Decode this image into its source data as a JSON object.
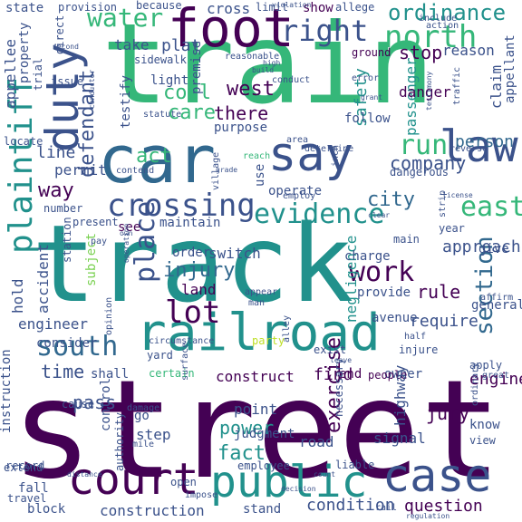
{
  "palette": {
    "purple": "#440154",
    "indigo": "#3b528b",
    "blue": "#31688e",
    "teal": "#21918c",
    "green": "#35b779",
    "lime": "#7ad151",
    "yellow": "#bddf26"
  },
  "words": [
    {
      "text": "street",
      "color": "purple"
    },
    {
      "text": "track",
      "color": "teal"
    },
    {
      "text": "train",
      "color": "green"
    },
    {
      "text": "car",
      "color": "blue"
    },
    {
      "text": "railroad",
      "color": "teal"
    },
    {
      "text": "foot",
      "color": "purple"
    },
    {
      "text": "court",
      "color": "purple"
    },
    {
      "text": "public",
      "color": "teal"
    },
    {
      "text": "case",
      "color": "indigo"
    },
    {
      "text": "say",
      "color": "indigo"
    },
    {
      "text": "duty",
      "color": "indigo"
    },
    {
      "text": "law",
      "color": "indigo"
    },
    {
      "text": "plaintiff",
      "color": "teal"
    },
    {
      "text": "crossing",
      "color": "indigo"
    },
    {
      "text": "evidence",
      "color": "teal"
    },
    {
      "text": "defendant",
      "color": "indigo"
    },
    {
      "text": "right",
      "color": "indigo"
    },
    {
      "text": "north",
      "color": "green"
    },
    {
      "text": "south",
      "color": "blue"
    },
    {
      "text": "place",
      "color": "indigo"
    },
    {
      "text": "lot",
      "color": "purple"
    },
    {
      "text": "work",
      "color": "purple"
    },
    {
      "text": "water",
      "color": "green"
    },
    {
      "text": "run",
      "color": "green"
    },
    {
      "text": "east",
      "color": "green"
    },
    {
      "text": "section",
      "color": "blue"
    },
    {
      "text": "ordinance",
      "color": "teal"
    },
    {
      "text": "injury",
      "color": "blue"
    },
    {
      "text": "person",
      "color": "blue"
    },
    {
      "text": "company",
      "color": "indigo"
    },
    {
      "text": "city",
      "color": "blue"
    },
    {
      "text": "way",
      "color": "purple"
    },
    {
      "text": "act",
      "color": "green"
    },
    {
      "text": "coal",
      "color": "green"
    },
    {
      "text": "care",
      "color": "green"
    },
    {
      "text": "west",
      "color": "purple"
    },
    {
      "text": "there",
      "color": "purple"
    },
    {
      "text": "stop",
      "color": "purple"
    },
    {
      "text": "time",
      "color": "indigo"
    },
    {
      "text": "fact",
      "color": "teal"
    },
    {
      "text": "power",
      "color": "teal"
    },
    {
      "text": "pass",
      "color": "indigo"
    },
    {
      "text": "jury",
      "color": "purple"
    },
    {
      "text": "rule",
      "color": "purple"
    },
    {
      "text": "exercise",
      "color": "purple"
    },
    {
      "text": "approach",
      "color": "indigo"
    },
    {
      "text": "condition",
      "color": "indigo"
    },
    {
      "text": "question",
      "color": "purple"
    },
    {
      "text": "find",
      "color": "purple"
    },
    {
      "text": "construct",
      "color": "purple"
    },
    {
      "text": "construction",
      "color": "indigo"
    },
    {
      "text": "require",
      "color": "indigo"
    },
    {
      "text": "engine",
      "color": "purple"
    },
    {
      "text": "negligence",
      "color": "teal"
    },
    {
      "text": "accident",
      "color": "indigo"
    },
    {
      "text": "hold",
      "color": "indigo"
    },
    {
      "text": "engineer",
      "color": "indigo"
    },
    {
      "text": "line",
      "color": "indigo"
    },
    {
      "text": "permit",
      "color": "indigo"
    },
    {
      "text": "appellee",
      "color": "indigo"
    },
    {
      "text": "take",
      "color": "indigo"
    },
    {
      "text": "plat",
      "color": "indigo"
    },
    {
      "text": "state",
      "color": "indigo"
    },
    {
      "text": "cross",
      "color": "indigo"
    },
    {
      "text": "show",
      "color": "purple"
    },
    {
      "text": "because",
      "color": "indigo"
    },
    {
      "text": "safety",
      "color": "teal"
    },
    {
      "text": "passenger",
      "color": "teal"
    },
    {
      "text": "danger",
      "color": "purple"
    },
    {
      "text": "follow",
      "color": "indigo"
    },
    {
      "text": "reason",
      "color": "indigo"
    },
    {
      "text": "claim",
      "color": "indigo"
    },
    {
      "text": "appellant",
      "color": "indigo"
    },
    {
      "text": "purpose",
      "color": "indigo"
    },
    {
      "text": "testify",
      "color": "indigo"
    },
    {
      "text": "light",
      "color": "indigo"
    },
    {
      "text": "premise",
      "color": "indigo"
    },
    {
      "text": "use",
      "color": "indigo"
    },
    {
      "text": "operate",
      "color": "indigo"
    },
    {
      "text": "maintain",
      "color": "indigo"
    },
    {
      "text": "switch",
      "color": "indigo"
    },
    {
      "text": "order",
      "color": "indigo"
    },
    {
      "text": "see",
      "color": "purple"
    },
    {
      "text": "land",
      "color": "purple"
    },
    {
      "text": "subject",
      "color": "lime"
    },
    {
      "text": "charge",
      "color": "indigo"
    },
    {
      "text": "provide",
      "color": "indigo"
    },
    {
      "text": "general",
      "color": "indigo"
    },
    {
      "text": "give",
      "color": "indigo"
    },
    {
      "text": "main",
      "color": "indigo"
    },
    {
      "text": "year",
      "color": "indigo"
    },
    {
      "text": "avenue",
      "color": "indigo"
    },
    {
      "text": "owner",
      "color": "indigo"
    },
    {
      "text": "end",
      "color": "purple"
    },
    {
      "text": "people",
      "color": "purple"
    },
    {
      "text": "shall",
      "color": "indigo"
    },
    {
      "text": "instruction",
      "color": "indigo"
    },
    {
      "text": "consider",
      "color": "indigo"
    },
    {
      "text": "road",
      "color": "indigo"
    },
    {
      "text": "step",
      "color": "indigo"
    },
    {
      "text": "point",
      "color": "indigo"
    },
    {
      "text": "go",
      "color": "indigo"
    },
    {
      "text": "signal",
      "color": "indigo"
    },
    {
      "text": "highway",
      "color": "indigo"
    },
    {
      "text": "know",
      "color": "indigo"
    },
    {
      "text": "judgment",
      "color": "indigo"
    },
    {
      "text": "control",
      "color": "indigo"
    },
    {
      "text": "employee",
      "color": "indigo"
    },
    {
      "text": "open",
      "color": "indigo"
    },
    {
      "text": "stand",
      "color": "indigo"
    },
    {
      "text": "block",
      "color": "indigo"
    },
    {
      "text": "fall",
      "color": "indigo"
    },
    {
      "text": "extend",
      "color": "indigo"
    },
    {
      "text": "travel",
      "color": "indigo"
    },
    {
      "text": "liable",
      "color": "indigo"
    },
    {
      "text": "necessary",
      "color": "indigo"
    },
    {
      "text": "certain",
      "color": "green"
    },
    {
      "text": "yard",
      "color": "indigo"
    },
    {
      "text": "party",
      "color": "yellow"
    },
    {
      "text": "exist",
      "color": "indigo"
    },
    {
      "text": "injure",
      "color": "indigo"
    },
    {
      "text": "apply",
      "color": "indigo"
    },
    {
      "text": "view",
      "color": "indigo"
    },
    {
      "text": "affirm",
      "color": "indigo"
    },
    {
      "text": "half",
      "color": "indigo"
    },
    {
      "text": "station",
      "color": "indigo"
    },
    {
      "text": "number",
      "color": "indigo"
    },
    {
      "text": "present",
      "color": "indigo"
    },
    {
      "text": "pay",
      "color": "indigo"
    },
    {
      "text": "circumstance",
      "color": "indigo"
    },
    {
      "text": "appear",
      "color": "indigo"
    },
    {
      "text": "man",
      "color": "indigo"
    },
    {
      "text": "village",
      "color": "indigo"
    },
    {
      "text": "contend",
      "color": "indigo"
    },
    {
      "text": "statute",
      "color": "indigo"
    },
    {
      "text": "area",
      "color": "indigo"
    },
    {
      "text": "determine",
      "color": "indigo"
    },
    {
      "text": "dangerous",
      "color": "indigo"
    },
    {
      "text": "reach",
      "color": "green"
    },
    {
      "text": "traffic",
      "color": "indigo"
    },
    {
      "text": "testimony",
      "color": "indigo"
    },
    {
      "text": "reverse",
      "color": "indigo"
    },
    {
      "text": "trial",
      "color": "indigo"
    },
    {
      "text": "issue",
      "color": "indigo"
    },
    {
      "text": "locate",
      "color": "indigo"
    },
    {
      "text": "property",
      "color": "indigo"
    },
    {
      "text": "provision",
      "color": "indigo"
    },
    {
      "text": "sidewalk",
      "color": "indigo"
    },
    {
      "text": "limit",
      "color": "indigo"
    },
    {
      "text": "allege",
      "color": "indigo"
    },
    {
      "text": "include",
      "color": "indigo"
    },
    {
      "text": "action",
      "color": "indigo"
    },
    {
      "text": "ground",
      "color": "purple"
    },
    {
      "text": "conduct",
      "color": "indigo"
    },
    {
      "text": "error",
      "color": "indigo"
    },
    {
      "text": "record",
      "color": "indigo"
    },
    {
      "text": "cause",
      "color": "indigo"
    },
    {
      "text": "authority",
      "color": "indigo"
    },
    {
      "text": "damage",
      "color": "indigo"
    },
    {
      "text": "mile",
      "color": "indigo"
    },
    {
      "text": "direct",
      "color": "indigo"
    },
    {
      "text": "second",
      "color": "indigo"
    },
    {
      "text": "build",
      "color": "indigo"
    },
    {
      "text": "conductor",
      "color": "indigo"
    },
    {
      "text": "reasonable",
      "color": "indigo"
    },
    {
      "text": "opinion",
      "color": "indigo"
    },
    {
      "text": "own",
      "color": "indigo"
    },
    {
      "text": "clear",
      "color": "indigo"
    },
    {
      "text": "alley",
      "color": "indigo"
    },
    {
      "text": "leave",
      "color": "indigo"
    },
    {
      "text": "grade",
      "color": "indigo"
    },
    {
      "text": "inch",
      "color": "indigo"
    },
    {
      "text": "employ",
      "color": "indigo"
    },
    {
      "text": "surface",
      "color": "indigo"
    },
    {
      "text": "distance",
      "color": "indigo"
    },
    {
      "text": "impose",
      "color": "indigo"
    },
    {
      "text": "decision",
      "color": "indigo"
    },
    {
      "text": "count",
      "color": "indigo"
    },
    {
      "text": "strip",
      "color": "indigo"
    },
    {
      "text": "license",
      "color": "indigo"
    },
    {
      "text": "ordinary",
      "color": "indigo"
    },
    {
      "text": "great",
      "color": "indigo"
    },
    {
      "text": "rail",
      "color": "indigo"
    },
    {
      "text": "regulation",
      "color": "indigo"
    },
    {
      "text": "operation",
      "color": "indigo"
    },
    {
      "text": "violation",
      "color": "indigo"
    },
    {
      "text": "grant",
      "color": "indigo"
    },
    {
      "text": "high",
      "color": "indigo"
    }
  ]
}
